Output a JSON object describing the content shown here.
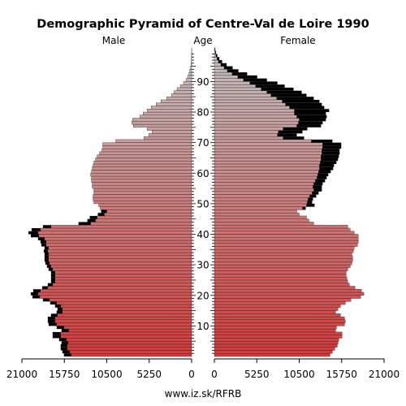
{
  "chart_data": {
    "type": "bar",
    "orientation": "horizontal-population-pyramid",
    "title": "Demographic Pyramid of Centre-Val de Loire 1990",
    "left_label": "Male",
    "center_label": "Age",
    "right_label": "Female",
    "source": "www.iz.sk/RFRB",
    "xlim": [
      0,
      21000
    ],
    "x_ticks": [
      "21000",
      "15750",
      "10500",
      "5250",
      "0",
      "0",
      "5250",
      "10500",
      "15750",
      "21000"
    ],
    "age_ticks": [
      "10",
      "20",
      "30",
      "40",
      "50",
      "60",
      "70",
      "80",
      "90"
    ],
    "age_range": [
      0,
      100
    ],
    "series": [
      {
        "name": "Male",
        "values": [
          14900,
          15100,
          15400,
          15400,
          15300,
          15500,
          16200,
          16200,
          15200,
          15800,
          16700,
          16900,
          16900,
          16600,
          16000,
          16000,
          16200,
          16700,
          17600,
          18800,
          19000,
          18700,
          17800,
          17200,
          16900,
          16900,
          16900,
          16900,
          17200,
          17400,
          17600,
          17700,
          17700,
          17700,
          17800,
          17700,
          18000,
          18000,
          18200,
          18900,
          19000,
          18700,
          17400,
          12500,
          11900,
          11700,
          10800,
          10500,
          11300,
          11500,
          12100,
          12200,
          12200,
          12100,
          12100,
          12300,
          12300,
          12400,
          12400,
          12500,
          12400,
          12300,
          12200,
          12100,
          11900,
          11700,
          11400,
          11100,
          11000,
          11000,
          9400,
          5900,
          5300,
          4900,
          5500,
          7200,
          7400,
          7300,
          6400,
          6000,
          5500,
          5000,
          4400,
          3800,
          3100,
          2500,
          2200,
          1800,
          1400,
          1000,
          700,
          500,
          340,
          220,
          140,
          80,
          40,
          20,
          10,
          5,
          2
        ],
        "excess": [
          900,
          900,
          800,
          800,
          800,
          900,
          1000,
          1000,
          900,
          900,
          1000,
          900,
          900,
          800,
          700,
          600,
          700,
          800,
          800,
          900,
          900,
          900,
          700,
          600,
          500,
          500,
          500,
          500,
          500,
          500,
          500,
          500,
          500,
          500,
          500,
          500,
          600,
          700,
          800,
          1000,
          1200,
          1100,
          1000,
          1500,
          1000,
          900,
          800,
          700,
          0,
          0,
          0,
          0,
          0,
          0,
          0,
          0,
          0,
          0,
          0,
          0,
          0,
          0,
          0,
          0,
          0,
          0,
          0,
          0,
          0,
          0,
          0,
          0,
          0,
          0,
          0,
          0,
          0,
          0,
          0,
          0,
          0,
          0,
          0,
          0,
          0,
          0,
          0,
          0,
          0,
          0,
          0,
          0,
          0,
          0,
          0,
          0,
          0,
          0,
          0,
          0,
          0
        ]
      },
      {
        "name": "Female",
        "values": [
          14300,
          14600,
          14900,
          15200,
          15300,
          15400,
          15800,
          15800,
          15000,
          15100,
          16100,
          16200,
          16100,
          15600,
          15000,
          15300,
          15600,
          16200,
          16900,
          18100,
          18500,
          18200,
          17400,
          16700,
          16500,
          16400,
          16300,
          16300,
          16500,
          16800,
          17000,
          17100,
          17100,
          17000,
          17200,
          17300,
          17700,
          17800,
          17800,
          17800,
          17300,
          16800,
          16500,
          12300,
          11700,
          11400,
          10500,
          10200,
          10900,
          11400,
          11500,
          11600,
          11800,
          12100,
          12300,
          12200,
          12300,
          12500,
          12700,
          12800,
          12900,
          13000,
          13000,
          13100,
          13200,
          13200,
          13300,
          13300,
          13400,
          13400,
          12000,
          8500,
          7800,
          7900,
          8500,
          10200,
          10400,
          10500,
          10200,
          9900,
          9900,
          9300,
          8800,
          8400,
          7700,
          7000,
          6500,
          5800,
          5100,
          4400,
          3600,
          2900,
          2200,
          1600,
          1200,
          800,
          500,
          320,
          190,
          110,
          60
        ],
        "excess": [
          0,
          0,
          0,
          0,
          0,
          0,
          0,
          0,
          0,
          0,
          0,
          0,
          0,
          0,
          0,
          0,
          0,
          0,
          0,
          0,
          0,
          0,
          0,
          0,
          0,
          0,
          0,
          0,
          0,
          0,
          0,
          0,
          0,
          0,
          0,
          0,
          0,
          0,
          0,
          0,
          0,
          0,
          0,
          0,
          0,
          0,
          0,
          0,
          400,
          1000,
          600,
          600,
          800,
          800,
          1000,
          1100,
          1100,
          1200,
          1200,
          1300,
          1500,
          1700,
          1800,
          2000,
          2100,
          2200,
          2200,
          2200,
          2300,
          2300,
          2600,
          2600,
          2400,
          3000,
          3000,
          3000,
          3000,
          3300,
          3700,
          3900,
          4300,
          4300,
          4500,
          4600,
          4600,
          4400,
          4300,
          4000,
          3600,
          3400,
          2900,
          2400,
          1860,
          1380,
          1060,
          720,
          460,
          300,
          180,
          100,
          55
        ]
      }
    ],
    "colors": {
      "young": "#d33a3a",
      "old": "#c2c2c2",
      "excess": "#000000",
      "bar_stroke": "#1a1a1a"
    }
  }
}
